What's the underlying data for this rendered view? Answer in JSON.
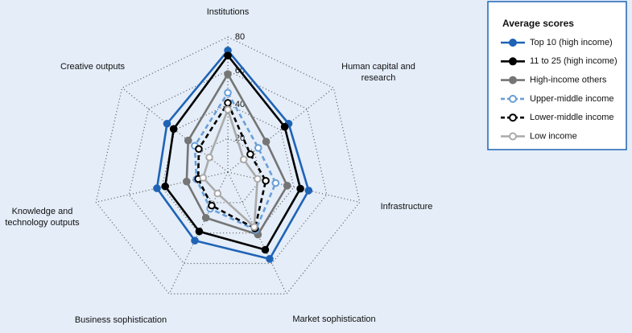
{
  "chart_data": {
    "type": "radar",
    "categories": [
      "Institutions",
      "Human capital and research",
      "Infrastructure",
      "Market sophistication",
      "Business sophistication",
      "Knowledge and technology outputs",
      "Creative outputs"
    ],
    "ylim": [
      0,
      80
    ],
    "yticks": [
      20,
      40,
      60,
      80
    ],
    "grid": true,
    "legend": {
      "title": "Average scores",
      "position": "upper right"
    },
    "series": [
      {
        "name": "Top 10 (high income)",
        "color": "#1f63b6",
        "dashed": false,
        "hollow": false,
        "values": [
          72,
          46,
          49,
          57,
          45,
          43,
          46
        ]
      },
      {
        "name": "11 to 25 (high income)",
        "color": "#000000",
        "dashed": false,
        "hollow": false,
        "values": [
          69,
          43,
          44,
          51,
          39,
          38,
          41
        ]
      },
      {
        "name": "High-income others",
        "color": "#757575",
        "dashed": false,
        "hollow": false,
        "values": [
          58,
          29,
          36,
          41,
          30,
          25,
          30
        ]
      },
      {
        "name": "Upper-middle income",
        "color": "#6a9fd8",
        "dashed": true,
        "hollow": true,
        "values": [
          47,
          23,
          29,
          38,
          24,
          19,
          25
        ]
      },
      {
        "name": "Lower-middle income",
        "color": "#000000",
        "dashed": true,
        "hollow": true,
        "values": [
          41,
          17,
          23,
          37,
          22,
          18,
          22
        ]
      },
      {
        "name": "Low income",
        "color": "#aaaaaa",
        "dashed": false,
        "hollow": true,
        "values": [
          37,
          12,
          18,
          36,
          14,
          15,
          14
        ]
      }
    ]
  }
}
